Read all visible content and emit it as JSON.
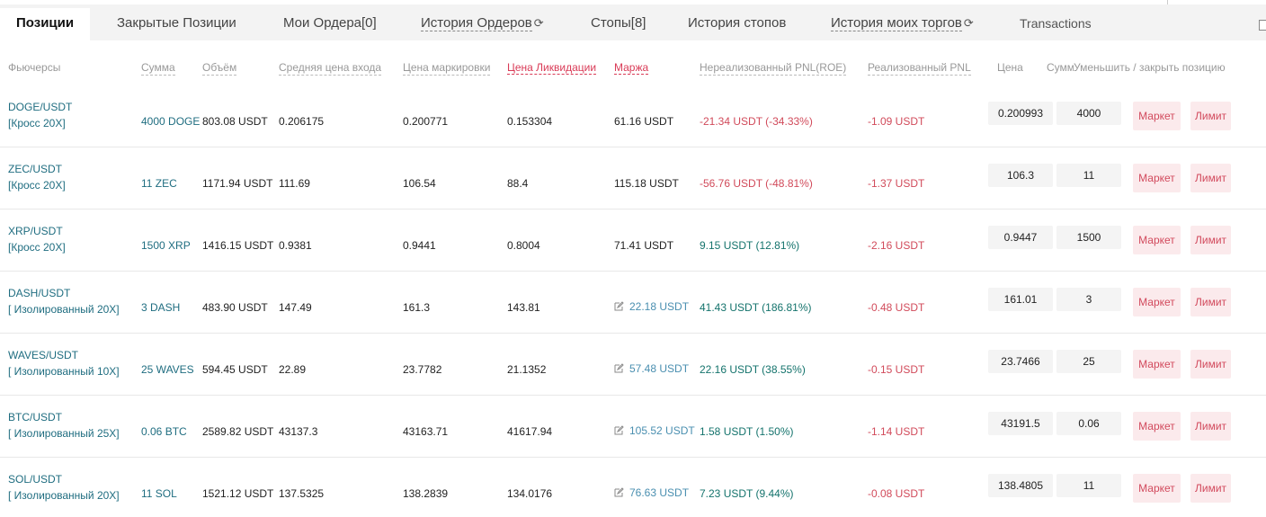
{
  "tabs": [
    {
      "label": "Позиции"
    },
    {
      "label": "Закрытые Позиции"
    },
    {
      "label": "Мои Ордера[0]"
    },
    {
      "label": "История Ордеров"
    },
    {
      "label": "Стопы[8]"
    },
    {
      "label": "История стопов"
    },
    {
      "label": "История моих торгов"
    },
    {
      "label": "Transactions"
    }
  ],
  "headers": {
    "futures": "Фьючерсы",
    "amount": "Сумма",
    "volume": "Объём",
    "entry": "Средняя цена входа",
    "mark": "Цена маркировки",
    "liq": "Цена Ликвидации",
    "margin": "Маржа",
    "unrealized": "Нереализованный PNL(ROE)",
    "realized": "Реализованный PNL",
    "price": "Цена",
    "sum": "Сумма",
    "reduce": "Уменьшить / закрыть позицию"
  },
  "buttons": {
    "market": "Маркет",
    "limit": "Лимит"
  },
  "rows": [
    {
      "pair": "DOGE/USDT",
      "mode": "[Кросс 20X]",
      "amount": "4000 DOGE",
      "volume": "803.08 USDT",
      "entry": "0.206175",
      "mark": "0.200771",
      "liq": "0.153304",
      "margin": "61.16 USDT",
      "margin_editable": false,
      "unrealized": "-21.34 USDT (-34.33%)",
      "unrealized_color": "red",
      "realized": "-1.09 USDT",
      "price": "0.200993",
      "qty": "4000"
    },
    {
      "pair": "ZEC/USDT",
      "mode": "[Кросс 20X]",
      "amount": "11 ZEC",
      "volume": "1171.94 USDT",
      "entry": "111.69",
      "mark": "106.54",
      "liq": "88.4",
      "margin": "115.18 USDT",
      "margin_editable": false,
      "unrealized": "-56.76 USDT (-48.81%)",
      "unrealized_color": "red",
      "realized": "-1.37 USDT",
      "price": "106.3",
      "qty": "11"
    },
    {
      "pair": "XRP/USDT",
      "mode": "[Кросс 20X]",
      "amount": "1500 XRP",
      "volume": "1416.15 USDT",
      "entry": "0.9381",
      "mark": "0.9441",
      "liq": "0.8004",
      "margin": "71.41 USDT",
      "margin_editable": false,
      "unrealized": "9.15 USDT (12.81%)",
      "unrealized_color": "green",
      "realized": "-2.16 USDT",
      "price": "0.9447",
      "qty": "1500"
    },
    {
      "pair": "DASH/USDT",
      "mode": "[ Изолированный 20X]",
      "amount": "3 DASH",
      "volume": "483.90 USDT",
      "entry": "147.49",
      "mark": "161.3",
      "liq": "143.81",
      "margin": "22.18 USDT",
      "margin_editable": true,
      "unrealized": "41.43 USDT (186.81%)",
      "unrealized_color": "green",
      "realized": "-0.48 USDT",
      "price": "161.01",
      "qty": "3"
    },
    {
      "pair": "WAVES/USDT",
      "mode": "[ Изолированный 10X]",
      "amount": "25 WAVES",
      "volume": "594.45 USDT",
      "entry": "22.89",
      "mark": "23.7782",
      "liq": "21.1352",
      "margin": "57.48 USDT",
      "margin_editable": true,
      "unrealized": "22.16 USDT (38.55%)",
      "unrealized_color": "green",
      "realized": "-0.15 USDT",
      "price": "23.7466",
      "qty": "25"
    },
    {
      "pair": "BTC/USDT",
      "mode": "[ Изолированный 25X]",
      "amount": "0.06 BTC",
      "volume": "2589.82 USDT",
      "entry": "43137.3",
      "mark": "43163.71",
      "liq": "41617.94",
      "margin": "105.52 USDT",
      "margin_editable": true,
      "unrealized": "1.58 USDT (1.50%)",
      "unrealized_color": "green",
      "realized": "-1.14 USDT",
      "price": "43191.5",
      "qty": "0.06"
    },
    {
      "pair": "SOL/USDT",
      "mode": "[ Изолированный 20X]",
      "amount": "11 SOL",
      "volume": "1521.12 USDT",
      "entry": "137.5325",
      "mark": "138.2839",
      "liq": "134.0176",
      "margin": "76.63 USDT",
      "margin_editable": true,
      "unrealized": "7.23 USDT (9.44%)",
      "unrealized_color": "green",
      "realized": "-0.08 USDT",
      "price": "138.4805",
      "qty": "11"
    }
  ]
}
